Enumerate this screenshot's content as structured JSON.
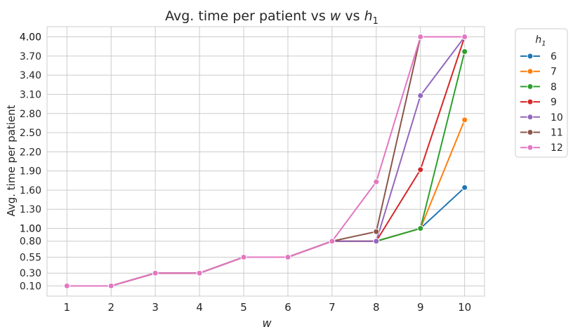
{
  "chart_data": {
    "type": "line",
    "title": "Avg. time per patient vs ",
    "title_w": "w",
    "title_vs": " vs ",
    "title_h": "h",
    "title_h_sub": "1",
    "xlabel": "w",
    "ylabel": "Avg. time per patient",
    "legend": {
      "title": "h",
      "title_sub": "1",
      "position": "outside-top-right"
    },
    "grid": true,
    "x": [
      1,
      2,
      3,
      4,
      5,
      6,
      7,
      8,
      9,
      10
    ],
    "x_ticks": [
      "1",
      "2",
      "3",
      "4",
      "5",
      "6",
      "7",
      "8",
      "9",
      "10"
    ],
    "y_ticks": [
      "0.10",
      "0.30",
      "0.55",
      "0.80",
      "1.00",
      "1.00",
      "1.30",
      "1.60",
      "1.90",
      "2.20",
      "2.50",
      "2.80",
      "3.10",
      "3.40",
      "3.70",
      "4.00",
      "4.00"
    ],
    "ylim": [
      -0.06,
      4.16
    ],
    "series": [
      {
        "name": "6",
        "color": "#1f77b4",
        "values": [
          0.1,
          0.1,
          0.3,
          0.3,
          0.55,
          0.55,
          0.8,
          0.8,
          1.0,
          1.64
        ]
      },
      {
        "name": "7",
        "color": "#ff7f0e",
        "values": [
          0.1,
          0.1,
          0.3,
          0.3,
          0.55,
          0.55,
          0.8,
          0.8,
          1.0,
          2.7
        ]
      },
      {
        "name": "8",
        "color": "#2ca02c",
        "values": [
          0.1,
          0.1,
          0.3,
          0.3,
          0.55,
          0.55,
          0.8,
          0.8,
          1.0,
          3.77
        ]
      },
      {
        "name": "9",
        "color": "#d62728",
        "values": [
          0.1,
          0.1,
          0.3,
          0.3,
          0.55,
          0.55,
          0.8,
          0.8,
          1.92,
          4.0
        ]
      },
      {
        "name": "10",
        "color": "#9467bd",
        "values": [
          0.1,
          0.1,
          0.3,
          0.3,
          0.55,
          0.55,
          0.8,
          0.8,
          3.08,
          4.0
        ]
      },
      {
        "name": "11",
        "color": "#8c564b",
        "values": [
          0.1,
          0.1,
          0.3,
          0.3,
          0.55,
          0.55,
          0.8,
          0.95,
          4.0,
          4.0
        ]
      },
      {
        "name": "12",
        "color": "#e377c2",
        "values": [
          0.1,
          0.1,
          0.3,
          0.3,
          0.55,
          0.55,
          0.8,
          1.73,
          4.0,
          4.0
        ]
      }
    ]
  }
}
